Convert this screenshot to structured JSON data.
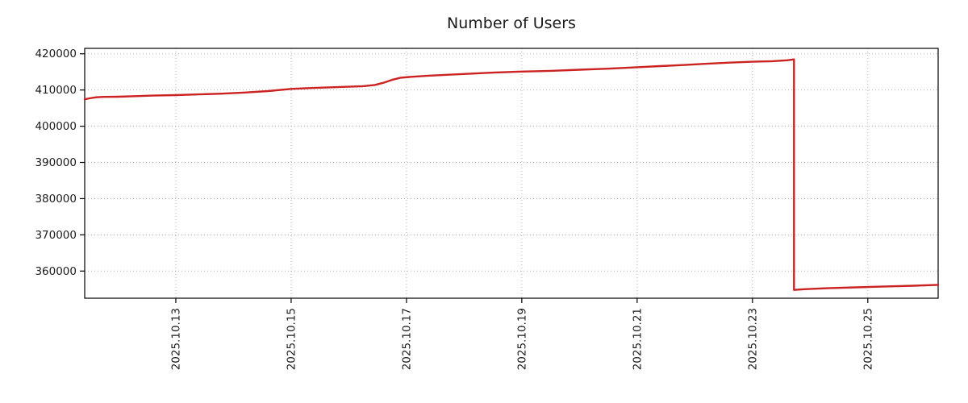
{
  "chart_data": {
    "type": "line",
    "title": "Number of Users",
    "xlabel": "",
    "ylabel": "",
    "grid": true,
    "grid_style": "dotted",
    "legend": "none",
    "axis_color": "#000000",
    "grid_color": "#b0b0b0",
    "text_color": "#1a1a1a",
    "xlim": [
      11.42,
      26.22
    ],
    "ylim": [
      352500,
      421500
    ],
    "x_ticks": [
      {
        "value": 13,
        "label": "2025.10.13"
      },
      {
        "value": 15,
        "label": "2025.10.15"
      },
      {
        "value": 17,
        "label": "2025.10.17"
      },
      {
        "value": 19,
        "label": "2025.10.19"
      },
      {
        "value": 21,
        "label": "2025.10.21"
      },
      {
        "value": 23,
        "label": "2025.10.23"
      },
      {
        "value": 25,
        "label": "2025.10.25"
      }
    ],
    "y_ticks": [
      {
        "value": 360000,
        "label": "360000"
      },
      {
        "value": 370000,
        "label": "370000"
      },
      {
        "value": 380000,
        "label": "380000"
      },
      {
        "value": 390000,
        "label": "390000"
      },
      {
        "value": 400000,
        "label": "400000"
      },
      {
        "value": 410000,
        "label": "410000"
      },
      {
        "value": 420000,
        "label": "420000"
      }
    ],
    "series": [
      {
        "name": "Number of Users",
        "color": "#cc2222",
        "line_width": 2.4,
        "x": [
          11.42,
          11.5,
          11.62,
          11.75,
          12.0,
          12.3,
          12.6,
          13.0,
          13.4,
          13.8,
          14.2,
          14.6,
          15.0,
          15.35,
          15.7,
          16.0,
          16.25,
          16.45,
          16.6,
          16.75,
          16.9,
          17.05,
          17.35,
          17.7,
          18.1,
          18.5,
          19.0,
          19.5,
          20.0,
          20.5,
          21.0,
          21.4,
          21.8,
          22.2,
          22.6,
          23.0,
          23.35,
          23.6,
          23.72,
          23.72,
          23.9,
          24.3,
          24.8,
          25.3,
          25.8,
          26.22
        ],
        "y": [
          407400,
          407700,
          408000,
          408100,
          408150,
          408300,
          408450,
          408600,
          408800,
          409000,
          409300,
          409700,
          410300,
          410550,
          410750,
          410900,
          411050,
          411400,
          412000,
          412800,
          413400,
          413600,
          413900,
          414200,
          414500,
          414800,
          415100,
          415300,
          415600,
          415900,
          416300,
          416600,
          416900,
          417250,
          417550,
          417800,
          417950,
          418200,
          418450,
          354800,
          355000,
          355250,
          355500,
          355750,
          355950,
          356200
        ]
      }
    ]
  }
}
